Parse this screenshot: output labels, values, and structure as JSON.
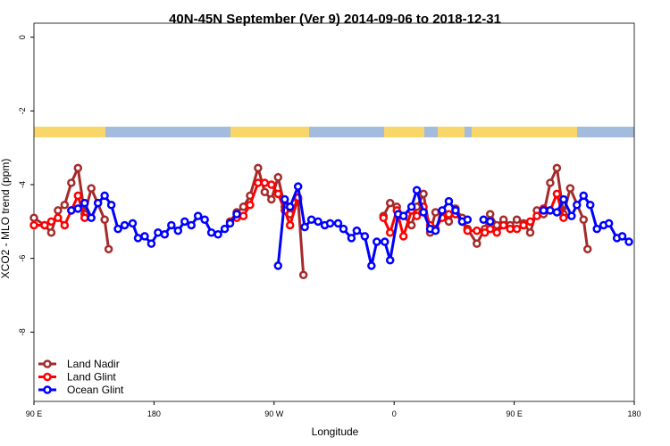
{
  "chart_data": {
    "type": "line",
    "title": "40N-45N September (Ver 9)   2014-09-06 to 2018-12-31",
    "xlabel": "Longitude",
    "ylabel": "XCO2 - MLO trend (ppm)",
    "xlim": [
      90,
      540
    ],
    "ylim": [
      -9.88,
      0.38
    ],
    "xticks": [
      {
        "value": 90,
        "label": "90 E"
      },
      {
        "value": 180,
        "label": "180"
      },
      {
        "value": 270,
        "label": "90 W"
      },
      {
        "value": 360,
        "label": "0"
      },
      {
        "value": 450,
        "label": "90 E"
      },
      {
        "value": 540,
        "label": "180"
      }
    ],
    "yticks": [
      0,
      -2,
      -4,
      -6,
      -8
    ],
    "legend": "bottom-left",
    "series": [
      {
        "name": "Land Nadir",
        "color": "#a52a2a",
        "x": [
          90,
          98,
          103,
          108,
          113,
          118,
          123,
          128,
          133,
          143,
          146,
          null,
          237,
          242,
          247,
          252,
          258,
          263,
          268,
          273,
          278,
          282,
          288,
          292,
          null,
          352,
          357,
          362,
          367,
          373,
          377,
          382,
          387,
          391,
          396,
          401,
          406,
          411,
          415,
          422,
          428,
          432,
          437,
          442,
          447,
          452,
          457,
          462,
          467,
          472,
          477,
          482,
          487,
          492,
          502,
          505
        ],
        "values": [
          -4.9,
          -5.1,
          -5.3,
          -4.7,
          -4.55,
          -3.95,
          -3.55,
          -4.8,
          -4.1,
          -4.95,
          -5.75,
          null,
          -5.0,
          -4.75,
          -4.6,
          -4.3,
          -3.55,
          -4.2,
          -4.4,
          -3.8,
          -4.6,
          -4.8,
          -4.4,
          -6.45,
          null,
          -4.85,
          -4.5,
          -4.6,
          -4.85,
          -5.1,
          -4.6,
          -4.25,
          -5.3,
          -4.75,
          -4.75,
          -5.0,
          -4.65,
          -4.9,
          -5.2,
          -5.6,
          -5.2,
          -4.8,
          -5.1,
          -4.95,
          -5.1,
          -4.95,
          -5.05,
          -5.3,
          -4.7,
          -4.8,
          -3.95,
          -3.55,
          -4.8,
          -4.1,
          -4.95,
          -5.75
        ]
      },
      {
        "name": "Land Glint",
        "color": "#ff0000",
        "x": [
          90,
          98,
          103,
          108,
          113,
          118,
          123,
          128,
          null,
          242,
          247,
          252,
          258,
          263,
          268,
          273,
          278,
          282,
          288,
          null,
          352,
          357,
          362,
          367,
          373,
          377,
          382,
          387,
          391,
          396,
          401,
          406,
          411,
          415,
          422,
          428,
          432,
          437,
          442,
          447,
          452,
          457,
          462,
          467,
          472,
          477,
          482,
          487
        ],
        "values": [
          -5.1,
          -5.1,
          -5.0,
          -4.9,
          -5.1,
          -4.7,
          -4.3,
          -4.9,
          null,
          -4.9,
          -4.85,
          -4.55,
          -3.95,
          -3.95,
          -4.0,
          -4.25,
          -4.7,
          -5.1,
          -4.35,
          null,
          -4.9,
          -5.3,
          -4.7,
          -5.4,
          -4.7,
          -4.85,
          -4.6,
          -5.1,
          -5.2,
          -4.9,
          -4.8,
          -4.8,
          -5.0,
          -5.25,
          -5.25,
          -5.3,
          -5.2,
          -5.3,
          -5.1,
          -5.2,
          -5.2,
          -5.1,
          -5.0,
          -4.85,
          -4.65,
          -4.7,
          -4.25,
          -4.9
        ]
      },
      {
        "name": "Ocean Glint",
        "color": "#0000ff",
        "x": [
          118,
          123,
          128,
          133,
          138,
          143,
          148,
          153,
          158,
          164,
          168,
          173,
          178,
          183,
          188,
          193,
          198,
          203,
          208,
          213,
          218,
          223,
          228,
          233,
          237,
          242,
          null,
          273,
          278,
          282,
          288,
          293,
          298,
          303,
          308,
          312,
          318,
          322,
          328,
          332,
          338,
          343,
          347,
          353,
          357,
          363,
          367,
          373,
          377,
          382,
          387,
          391,
          396,
          401,
          406,
          411,
          415,
          null,
          427,
          432,
          null,
          472,
          477,
          482,
          487,
          493,
          497,
          502,
          507,
          512,
          517,
          521,
          527,
          531,
          536
        ],
        "values": [
          -4.7,
          -4.65,
          -4.5,
          -4.9,
          -4.5,
          -4.3,
          -4.55,
          -5.2,
          -5.1,
          -5.05,
          -5.45,
          -5.4,
          -5.6,
          -5.3,
          -5.35,
          -5.1,
          -5.25,
          -5.0,
          -5.1,
          -4.85,
          -4.95,
          -5.3,
          -5.35,
          -5.2,
          -5.05,
          -4.8,
          null,
          -6.2,
          -4.4,
          -4.6,
          -4.05,
          -5.15,
          -4.95,
          -5.0,
          -5.1,
          -5.05,
          -5.05,
          -5.2,
          -5.45,
          -5.25,
          -5.4,
          -6.2,
          -5.55,
          -5.55,
          -6.05,
          -4.8,
          -4.85,
          -4.6,
          -4.15,
          -4.75,
          -5.2,
          -5.25,
          -4.7,
          -4.45,
          -4.7,
          -5.0,
          -4.95,
          null,
          -4.95,
          -5.0,
          null,
          -4.7,
          -4.7,
          -4.75,
          -4.4,
          -4.85,
          -4.55,
          -4.3,
          -4.55,
          -5.2,
          -5.1,
          -5.05,
          -5.45,
          -5.4,
          -5.55
        ]
      }
    ]
  }
}
